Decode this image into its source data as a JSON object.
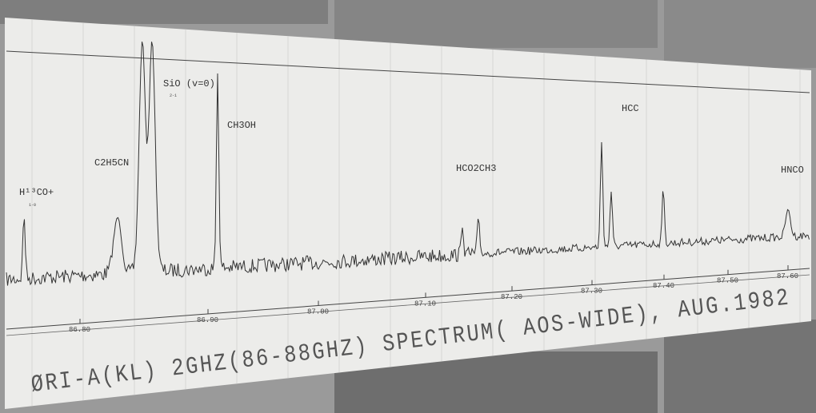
{
  "photo": {
    "title": "ØRI-A(KL) 2GHZ(86-88GHZ) SPECTRUM( AOS-WIDE), AUG.1982",
    "lines": [
      {
        "label": "H¹³CO+",
        "transition": "1-0"
      },
      {
        "label": "C2H5CN"
      },
      {
        "label": "SiO (v=0)",
        "transition": "2-1"
      },
      {
        "label": "CH3OH"
      },
      {
        "label": "HCO2CH3"
      },
      {
        "label": "HCC"
      },
      {
        "label": "HNCO"
      }
    ],
    "frequency_labels": [
      "86.80",
      "86.90",
      "87.00",
      "87.10",
      "87.20",
      "87.30",
      "87.40",
      "87.50",
      "87.60"
    ]
  }
}
